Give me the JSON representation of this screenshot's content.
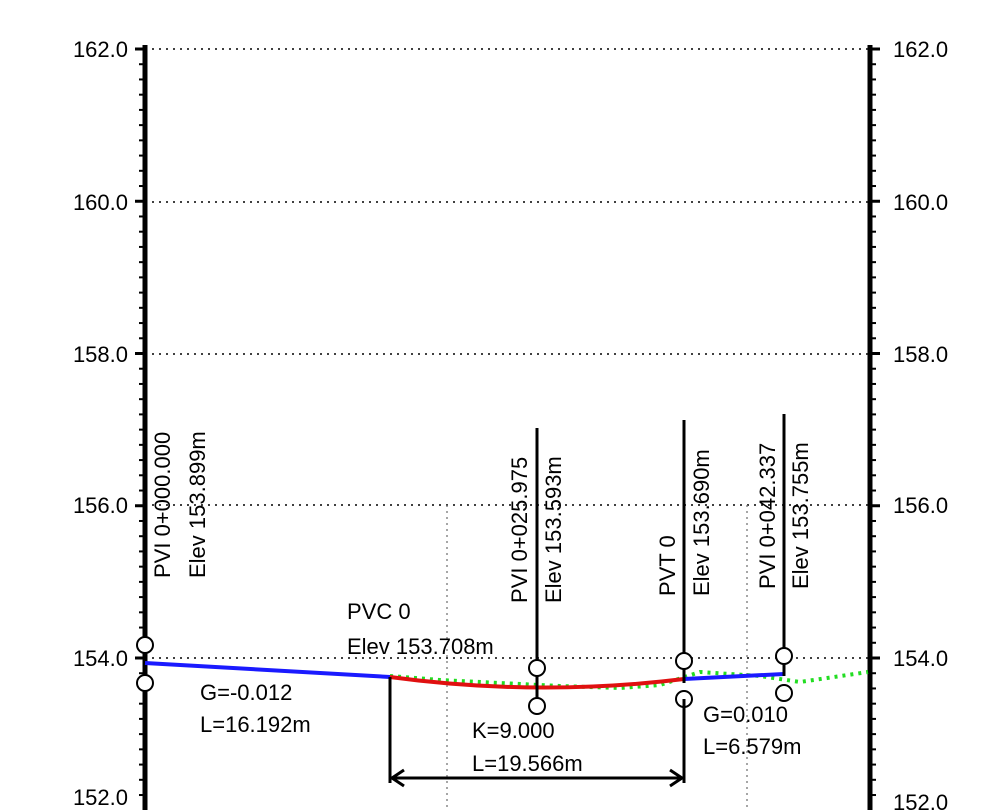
{
  "elevation_axis": {
    "ticks": [
      "162.0",
      "160.0",
      "158.0",
      "156.0",
      "154.0",
      "152.0"
    ],
    "values": [
      162,
      160,
      158,
      156,
      154,
      152
    ],
    "range": [
      152,
      162
    ]
  },
  "pvis": [
    {
      "label": "PVI 0+000.000",
      "elev": "Elev 153.899m"
    },
    {
      "label": "PVI 0+025.975",
      "elev": "Elev 153.593m"
    },
    {
      "label": "PVI 0+042.337",
      "elev": "Elev 153.755m"
    }
  ],
  "pvt": {
    "label": "PVT 0",
    "elev": "Elev 153.690m"
  },
  "pvc": {
    "label": "PVC 0",
    "elev": "Elev 153.708m"
  },
  "segments": {
    "tangent_in": {
      "grade": "G=-0.012",
      "length": "L=16.192m"
    },
    "curve": {
      "k": "K=9.000",
      "length": "L=19.566m"
    },
    "tangent_out": {
      "grade": "G=0.010",
      "length": "L=6.579m"
    }
  },
  "colors": {
    "tangent": "#1a1aff",
    "curve": "#e01010",
    "ground": "#22dd22",
    "axis": "#000000"
  }
}
